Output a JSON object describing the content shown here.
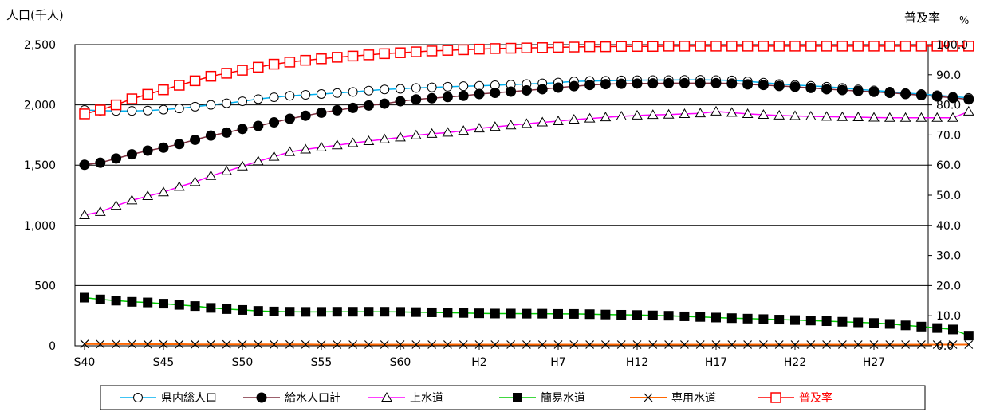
{
  "chart_data": {
    "type": "line",
    "left_axis": {
      "title": "人口(千人)",
      "ticks": [
        "0",
        "500",
        "1,000",
        "1,500",
        "2,000",
        "2,500"
      ],
      "range": [
        0,
        2500
      ]
    },
    "right_axis": {
      "title": "普及率",
      "unit": "%",
      "ticks": [
        "0.0",
        "10.0",
        "20.0",
        "30.0",
        "40.0",
        "50.0",
        "60.0",
        "70.0",
        "80.0",
        "90.0",
        "100.0"
      ],
      "range": [
        0,
        100
      ]
    },
    "x_tick_labels": [
      "S40",
      "S45",
      "S50",
      "S55",
      "S60",
      "H2",
      "H7",
      "H12",
      "H17",
      "H22",
      "H27"
    ],
    "x_tick_positions": [
      0,
      5,
      10,
      15,
      20,
      25,
      30,
      35,
      40,
      45,
      50
    ],
    "grid": "horizontal",
    "legend_position": "bottom",
    "series": [
      {
        "name": "県内総人口",
        "axis": "left",
        "line_color": "#00b0f0",
        "marker": "circle-open",
        "values": [
          1958,
          1952,
          1950,
          1950,
          1953,
          1960,
          1970,
          1985,
          2000,
          2013,
          2030,
          2048,
          2063,
          2075,
          2083,
          2090,
          2098,
          2107,
          2118,
          2128,
          2133,
          2140,
          2145,
          2150,
          2155,
          2158,
          2163,
          2168,
          2173,
          2178,
          2185,
          2195,
          2198,
          2200,
          2203,
          2205,
          2206,
          2206,
          2207,
          2208,
          2206,
          2203,
          2195,
          2184,
          2173,
          2165,
          2158,
          2150,
          2140,
          2128,
          2120,
          2110,
          2098,
          2090,
          2080,
          2068,
          2058
        ]
      },
      {
        "name": "給水人口計",
        "axis": "left",
        "line_color": "#7b2c3c",
        "marker": "circle-filled",
        "values": [
          1503,
          1520,
          1555,
          1590,
          1620,
          1645,
          1675,
          1710,
          1745,
          1770,
          1800,
          1825,
          1855,
          1885,
          1910,
          1935,
          1955,
          1975,
          1995,
          2010,
          2030,
          2045,
          2055,
          2065,
          2075,
          2090,
          2100,
          2110,
          2120,
          2130,
          2143,
          2155,
          2165,
          2172,
          2175,
          2177,
          2178,
          2180,
          2180,
          2180,
          2180,
          2177,
          2170,
          2165,
          2157,
          2150,
          2140,
          2130,
          2123,
          2115,
          2108,
          2100,
          2090,
          2080,
          2070,
          2058,
          2045
        ]
      },
      {
        "name": "上水道",
        "axis": "left",
        "line_color": "#ff00ff",
        "marker": "triangle-open",
        "values": [
          1085,
          1112,
          1163,
          1208,
          1243,
          1275,
          1320,
          1360,
          1410,
          1450,
          1490,
          1532,
          1570,
          1610,
          1630,
          1648,
          1665,
          1683,
          1700,
          1715,
          1730,
          1748,
          1760,
          1770,
          1785,
          1805,
          1818,
          1830,
          1843,
          1855,
          1865,
          1878,
          1887,
          1897,
          1905,
          1912,
          1917,
          1920,
          1925,
          1930,
          1945,
          1935,
          1925,
          1918,
          1912,
          1908,
          1905,
          1902,
          1900,
          1898,
          1895,
          1893,
          1893,
          1893,
          1893,
          1893,
          1945
        ]
      },
      {
        "name": "簡易水道",
        "axis": "left",
        "line_color": "#00cc00",
        "marker": "square-filled",
        "values": [
          400,
          385,
          375,
          365,
          360,
          350,
          340,
          330,
          315,
          305,
          298,
          290,
          285,
          283,
          282,
          282,
          283,
          283,
          283,
          283,
          282,
          280,
          278,
          275,
          273,
          270,
          268,
          268,
          267,
          267,
          265,
          265,
          263,
          260,
          258,
          256,
          253,
          250,
          245,
          240,
          235,
          230,
          226,
          222,
          218,
          214,
          210,
          205,
          200,
          195,
          190,
          182,
          170,
          160,
          148,
          136,
          85
        ]
      },
      {
        "name": "専用水道",
        "axis": "left",
        "line_color": "#ff6600",
        "marker": "x",
        "values": [
          15,
          14,
          14,
          14,
          13,
          13,
          13,
          12,
          12,
          12,
          12,
          11,
          11,
          11,
          11,
          10,
          10,
          10,
          10,
          10,
          10,
          10,
          10,
          10,
          10,
          10,
          10,
          10,
          10,
          10,
          10,
          10,
          10,
          10,
          10,
          10,
          10,
          10,
          10,
          10,
          10,
          10,
          10,
          10,
          10,
          10,
          10,
          10,
          10,
          10,
          10,
          10,
          10,
          10,
          10,
          10,
          10
        ]
      },
      {
        "name": "普及率",
        "axis": "right",
        "line_color": "#ff0000",
        "marker": "square-open",
        "values": [
          77.0,
          78.3,
          80.0,
          82.0,
          83.5,
          85.0,
          86.5,
          88.0,
          89.5,
          90.5,
          91.5,
          92.5,
          93.5,
          94.2,
          94.8,
          95.3,
          95.8,
          96.2,
          96.6,
          97.0,
          97.3,
          97.6,
          97.9,
          98.1,
          98.3,
          98.5,
          98.7,
          98.8,
          98.9,
          99.0,
          99.1,
          99.2,
          99.3,
          99.3,
          99.4,
          99.4,
          99.4,
          99.5,
          99.5,
          99.5,
          99.5,
          99.5,
          99.5,
          99.5,
          99.5,
          99.5,
          99.5,
          99.5,
          99.5,
          99.5,
          99.5,
          99.5,
          99.5,
          99.5,
          99.5,
          99.5,
          99.5
        ]
      }
    ]
  }
}
